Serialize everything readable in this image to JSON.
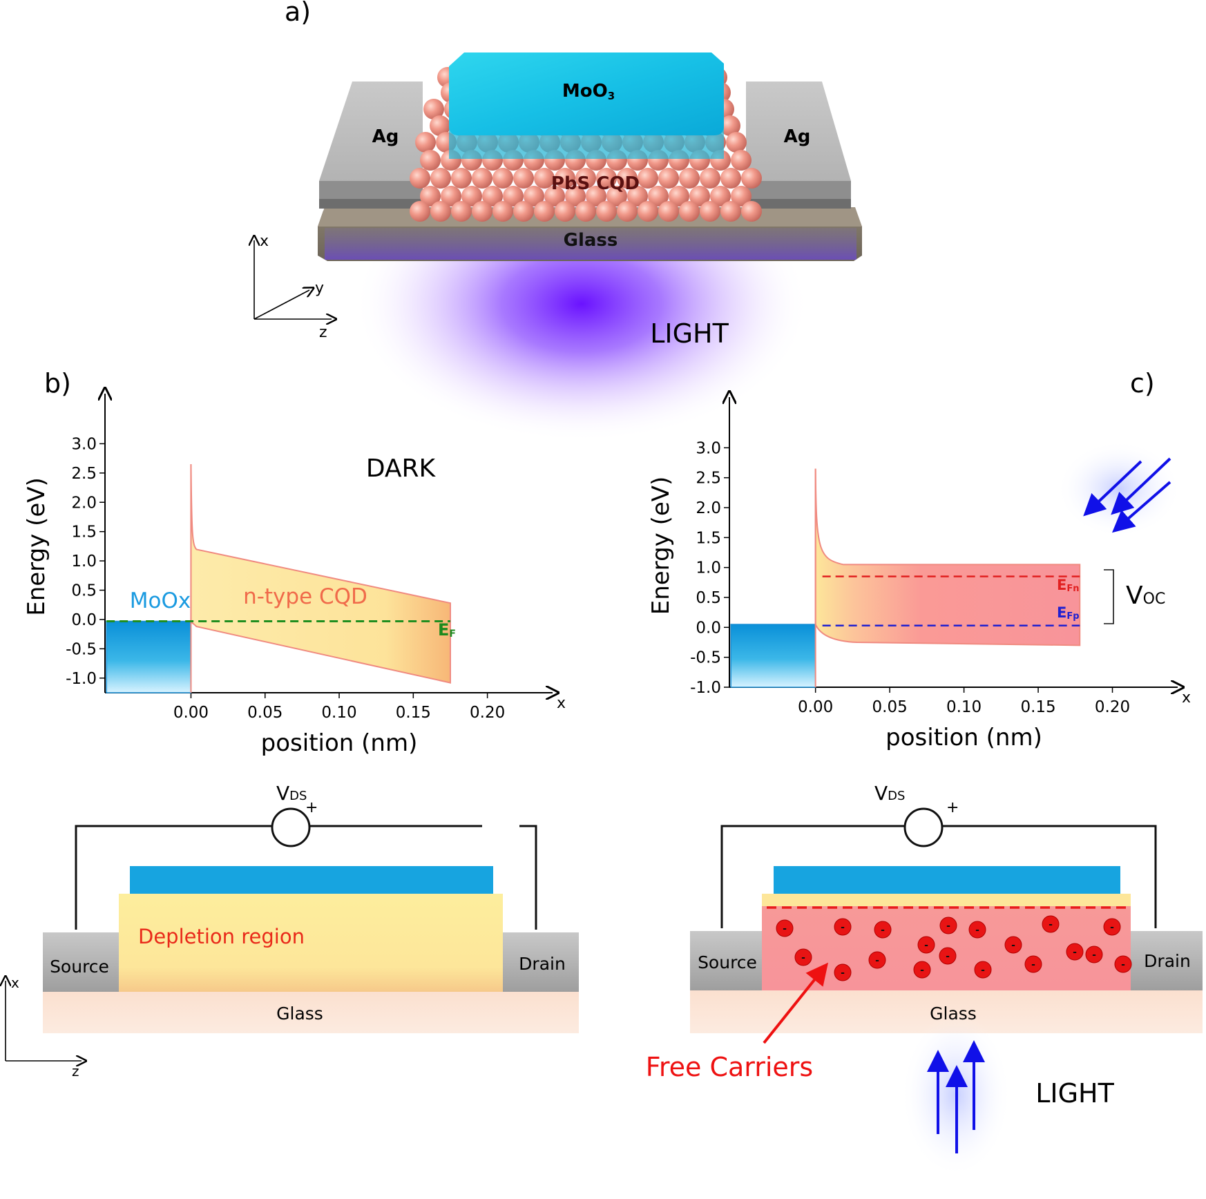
{
  "panel_a": {
    "label": "a)",
    "layers": {
      "top": "MoO",
      "top_sub": "3",
      "left_electrode": "Ag",
      "right_electrode": "Ag",
      "dots": "PbS CQD",
      "substrate": "Glass"
    },
    "axes": {
      "x": "x",
      "y": "y",
      "z": "z"
    },
    "light_label": "LIGHT"
  },
  "panel_b": {
    "label": "b)",
    "condition": "DARK",
    "moox_label": "MoOx",
    "cqd_label": "n-type CQD",
    "fermi_label_main": "E",
    "fermi_label_sub": "F",
    "circuit": {
      "vds_main": "V",
      "vds_sub": "DS",
      "plus": "+",
      "source": "Source",
      "drain": "Drain",
      "region": "Depletion region",
      "glass": "Glass",
      "axis_x": "x",
      "axis_z": "z"
    }
  },
  "panel_c": {
    "label": "c)",
    "efn_main": "E",
    "efn_sub": "Fn",
    "efp_main": "E",
    "efp_sub": "Fp",
    "voc_main": "V",
    "voc_sub": "OC",
    "circuit": {
      "vds_main": "V",
      "vds_sub": "DS",
      "plus": "+",
      "source": "Source",
      "drain": "Drain",
      "glass": "Glass",
      "carrier_sign": "-",
      "free_carriers": "Free Carriers",
      "light_label": "LIGHT"
    }
  },
  "chart_data": [
    {
      "type": "line",
      "ylabel": "Energy (eV)",
      "xlabel": "position (nm)",
      "x_axis_end_label": "x",
      "xlim": [
        -0.058,
        0.23
      ],
      "ylim": [
        -1.25,
        3.5
      ],
      "xticks": [
        0.0,
        0.05,
        0.1,
        0.15,
        0.2
      ],
      "xtick_labels": [
        "0.00",
        "0.05",
        "0.10",
        "0.15",
        "0.20"
      ],
      "yticks": [
        3.0,
        2.5,
        2.0,
        1.5,
        1.0,
        0.5,
        0.0,
        -0.5,
        -1.0
      ],
      "ytick_labels": [
        "3.0",
        "2.5",
        "2.0",
        "1.5",
        "1.0",
        "0.5",
        "0.0",
        "-0.5",
        "-1.0"
      ],
      "moox_block": {
        "x_start": -0.057,
        "x_end": 0.0,
        "y_top": -0.03
      },
      "spike": {
        "x": 0.0,
        "y_top": 2.65
      },
      "conduction_band": {
        "x": [
          0.0,
          0.175
        ],
        "y": [
          1.22,
          0.28
        ]
      },
      "valence_band": {
        "x": [
          0.0,
          0.175
        ],
        "y": [
          -0.12,
          -1.08
        ]
      },
      "fermi_level": {
        "x": [
          -0.057,
          0.175
        ],
        "y": [
          -0.03,
          -0.03
        ]
      }
    },
    {
      "type": "line",
      "ylabel": "Energy (eV)",
      "xlabel": "position (nm)",
      "x_axis_end_label": "x",
      "xlim": [
        -0.058,
        0.23
      ],
      "ylim": [
        -1.0,
        3.5
      ],
      "xticks": [
        0.0,
        0.05,
        0.1,
        0.15,
        0.2
      ],
      "xtick_labels": [
        "0.00",
        "0.05",
        "0.10",
        "0.15",
        "0.20"
      ],
      "yticks": [
        3.0,
        2.5,
        2.0,
        1.5,
        1.0,
        0.5,
        0.0,
        -0.5,
        -1.0
      ],
      "ytick_labels": [
        "3.0",
        "2.5",
        "2.0",
        "1.5",
        "1.0",
        "0.5",
        "0.0",
        "-0.5",
        "-1.0"
      ],
      "moox_block": {
        "x_start": -0.057,
        "x_end": 0.0,
        "y_top": 0.05
      },
      "spike": {
        "x": 0.0,
        "y_top": 2.65
      },
      "conduction_band": {
        "x": [
          0.0,
          0.178
        ],
        "y": [
          1.05,
          1.05
        ]
      },
      "valence_band": {
        "x": [
          0.0,
          0.178
        ],
        "y": [
          -0.25,
          -0.3
        ]
      },
      "quasi_fermi_n": {
        "x": [
          0.0,
          0.178
        ],
        "y": [
          0.85,
          0.85
        ]
      },
      "quasi_fermi_p": {
        "x": [
          0.0,
          0.178
        ],
        "y": [
          0.03,
          0.03
        ]
      }
    }
  ]
}
